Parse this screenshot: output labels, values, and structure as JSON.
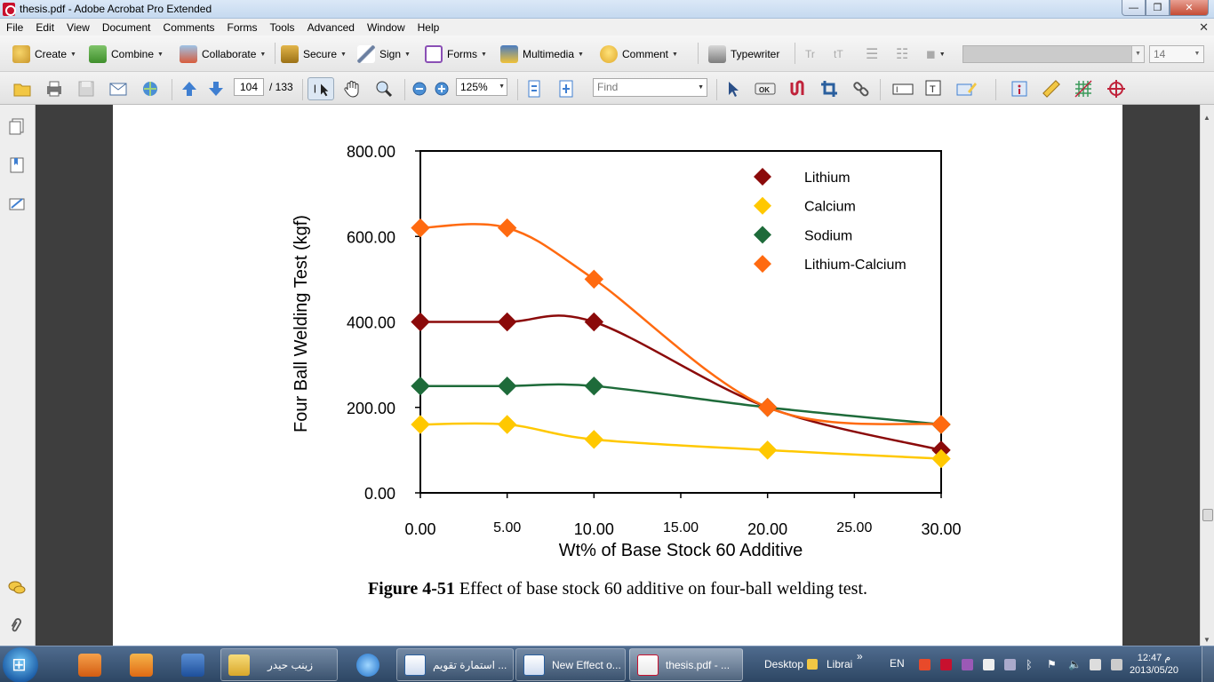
{
  "window": {
    "title": "thesis.pdf - Adobe Acrobat Pro Extended",
    "min": "—",
    "max": "❐",
    "close": "✕"
  },
  "menu": [
    "File",
    "Edit",
    "View",
    "Document",
    "Comments",
    "Forms",
    "Tools",
    "Advanced",
    "Window",
    "Help"
  ],
  "toolbar": {
    "create": "Create",
    "combine": "Combine",
    "collaborate": "Collaborate",
    "secure": "Secure",
    "sign": "Sign",
    "forms": "Forms",
    "multimedia": "Multimedia",
    "comment": "Comment",
    "typewriter": "Typewriter",
    "font_size": "14"
  },
  "nav": {
    "page_current": "104",
    "page_total": "/ 133",
    "zoom": "125%",
    "find_placeholder": "Find"
  },
  "caption": {
    "label": "Figure 4-51",
    "text": " Effect of base stock 60 additive on four-ball welding test."
  },
  "chart_data": {
    "type": "line",
    "xlabel": "Wt% of Base Stock 60 Additive",
    "ylabel": "Four Ball Welding Test (kgf)",
    "xlim": [
      0,
      30
    ],
    "ylim": [
      0,
      800
    ],
    "xticks": [
      "0.00",
      "5.00",
      "10.00",
      "15.00",
      "20.00",
      "25.00",
      "30.00"
    ],
    "yticks": [
      "0.00",
      "200.00",
      "400.00",
      "600.00",
      "800.00"
    ],
    "x": [
      0,
      5,
      10,
      20,
      30
    ],
    "legend_position": "top-right",
    "grid": false,
    "marker": "diamond",
    "series": [
      {
        "name": "Lithium",
        "color": "#8B0A0A",
        "values": [
          400,
          400,
          400,
          200,
          100
        ]
      },
      {
        "name": "Calcium",
        "color": "#FFC800",
        "values": [
          160,
          160,
          125,
          100,
          80
        ]
      },
      {
        "name": "Sodium",
        "color": "#1E6B3A",
        "values": [
          250,
          250,
          250,
          200,
          160
        ]
      },
      {
        "name": "Lithium-Calcium",
        "color": "#FF6A10",
        "values": [
          620,
          620,
          500,
          200,
          160
        ]
      }
    ]
  },
  "taskbar": {
    "folder_label": "زينب حيدر",
    "task1": "استمارة تقويم ...",
    "task2": "New Effect o...",
    "task3": "thesis.pdf - ...",
    "desktop": "Desktop",
    "libra": "Librai",
    "more": "»",
    "lang": "EN",
    "time": "12:47 م",
    "date": "2013/05/20"
  },
  "colors": {
    "acrobat_red": "#C8102E",
    "taskbar_blue": "#2D4663"
  }
}
